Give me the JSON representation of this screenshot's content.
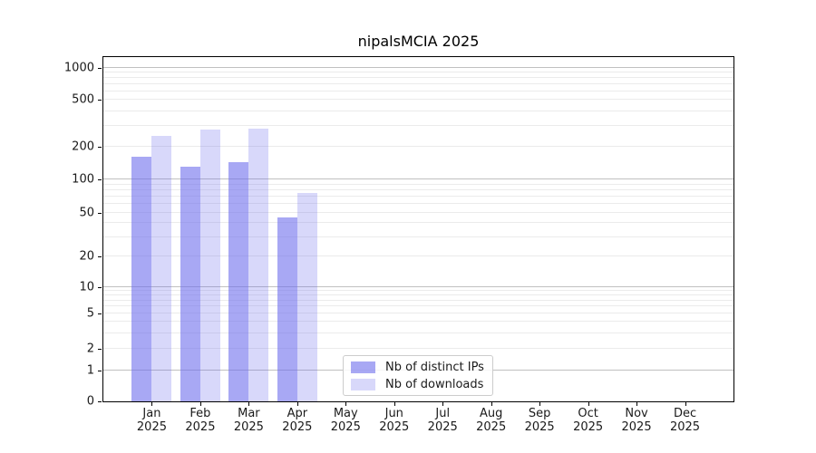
{
  "chart_data": {
    "type": "bar",
    "title": "nipalsMCIA 2025",
    "categories": [
      "Jan 2025",
      "Feb 2025",
      "Mar 2025",
      "Apr 2025",
      "May 2025",
      "Jun 2025",
      "Jul 2025",
      "Aug 2025",
      "Sep 2025",
      "Oct 2025",
      "Nov 2025",
      "Dec 2025"
    ],
    "series": [
      {
        "name": "Nb of distinct IPs",
        "color": "rgba(105,105,236,0.58)",
        "values": [
          162,
          131,
          145,
          45,
          0,
          0,
          0,
          0,
          0,
          0,
          0,
          0
        ]
      },
      {
        "name": "Nb of downloads",
        "color": "rgba(105,105,236,0.26)",
        "values": [
          245,
          280,
          285,
          75,
          0,
          0,
          0,
          0,
          0,
          0,
          0,
          0
        ]
      }
    ],
    "yscale": "symlog",
    "ylim": [
      0,
      1200
    ],
    "ytick_values": [
      0,
      1,
      2,
      5,
      10,
      20,
      50,
      100,
      200,
      500,
      1000
    ],
    "ytick_labels": [
      "0",
      "1",
      "2",
      "5",
      "10",
      "20",
      "50",
      "100",
      "200",
      "500",
      "1000"
    ],
    "xlabel": "",
    "ylabel": "",
    "grid": "horizontal major+minor",
    "legend_position": "lower center"
  },
  "colors": {
    "axis": "#000000",
    "text": "#1a1a1a",
    "grid_major": "#c0c0c0",
    "grid_minor": "#ebebeb",
    "legend_border": "#cccccc",
    "bar_base": "#6969ec"
  }
}
